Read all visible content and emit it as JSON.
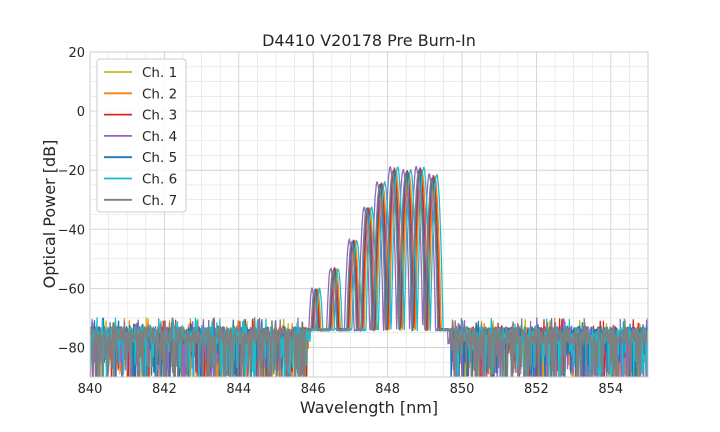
{
  "chart_data": {
    "type": "line",
    "title": "D4410 V20178 Pre Burn-In",
    "xlabel": "Wavelength [nm]",
    "ylabel": "Optical Power [dB]",
    "xlim": [
      840,
      855
    ],
    "ylim": [
      -90,
      20
    ],
    "x_ticks": [
      840,
      842,
      844,
      846,
      848,
      850,
      852,
      854
    ],
    "y_ticks": [
      20,
      0,
      -20,
      -40,
      -60,
      -80
    ],
    "x_tick_labels": [
      "840",
      "842",
      "844",
      "846",
      "848",
      "850",
      "852",
      "854"
    ],
    "y_tick_labels": [
      "20",
      "0",
      "−20",
      "−40",
      "−60",
      "−80"
    ],
    "grid": true,
    "legend_position": "top-left",
    "noise_floor_db": -76,
    "passband_nm": [
      845.8,
      849.7
    ],
    "series": [
      {
        "name": "Ch. 1",
        "color": "#bcbd22",
        "shift": 0.04,
        "peak": -20.5
      },
      {
        "name": "Ch. 2",
        "color": "#ff7f0e",
        "shift": 0.07,
        "peak": -20.0
      },
      {
        "name": "Ch. 3",
        "color": "#d62728",
        "shift": 0.03,
        "peak": -19.5
      },
      {
        "name": "Ch. 4",
        "color": "#9467bd",
        "shift": -0.08,
        "peak": -19.0
      },
      {
        "name": "Ch. 5",
        "color": "#1f77b4",
        "shift": 0.0,
        "peak": -20.0
      },
      {
        "name": "Ch. 6",
        "color": "#17becf",
        "shift": 0.12,
        "peak": -19.0
      },
      {
        "name": "Ch. 7",
        "color": "#7f7f7f",
        "shift": -0.02,
        "peak": -21.0
      }
    ]
  }
}
